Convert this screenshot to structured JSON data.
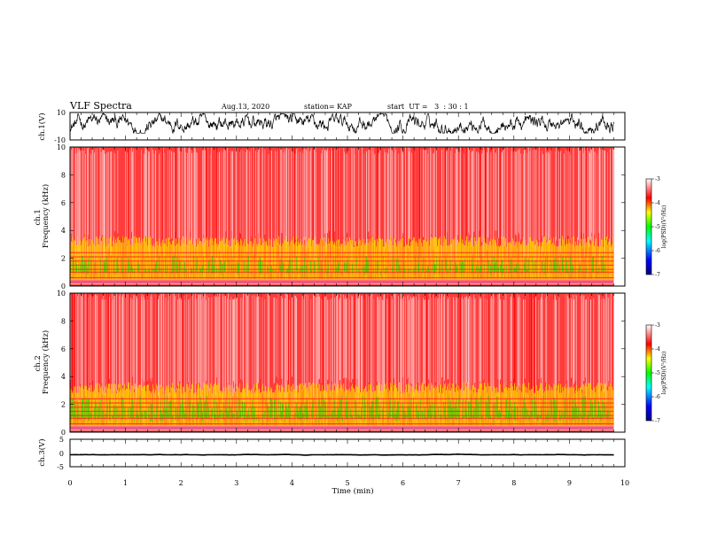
{
  "header": {
    "title": "VLF Spectra",
    "date": "Aug.13, 2020",
    "station": "station= KAP",
    "start": "start  UT =   3  : 30 : 1"
  },
  "chart_data": [
    {
      "id": "ch1-wave",
      "type": "line",
      "ylabel": "ch.1(V)",
      "ylim": [
        -10,
        10
      ],
      "ytick_labels": [
        "10",
        "-10"
      ],
      "xlim": [
        0,
        10
      ],
      "amplitude_range": [
        -5,
        9
      ],
      "color": "#000000"
    },
    {
      "id": "ch1-spectrogram",
      "type": "heatmap",
      "ylabel": "ch.1\nFrequency (kHz)",
      "ylim": [
        0,
        10
      ],
      "ytick_labels": [
        "0",
        "2",
        "4",
        "6",
        "8",
        "10"
      ],
      "xlim": [
        0,
        10
      ],
      "data_end_min": 9.8,
      "colorbar": {
        "label": "log(PSD)(V²/Hz)",
        "range": [
          -7,
          -3
        ],
        "tick_labels": [
          "-3",
          "-4",
          "-5",
          "-6",
          "-7"
        ]
      },
      "low_band_khz": [
        0.5,
        3.0
      ]
    },
    {
      "id": "ch2-spectrogram",
      "type": "heatmap",
      "ylabel": "ch.2\nFrequency (kHz)",
      "ylim": [
        0,
        10
      ],
      "ytick_labels": [
        "0",
        "2",
        "4",
        "6",
        "8",
        "10"
      ],
      "xlim": [
        0,
        10
      ],
      "data_end_min": 9.8,
      "colorbar": {
        "label": "log(PSD)(V²/Hz)",
        "range": [
          -7,
          -3
        ],
        "tick_labels": [
          "-3",
          "-4",
          "-5",
          "-6",
          "-7"
        ]
      },
      "low_band_khz": [
        0.5,
        3.0
      ]
    },
    {
      "id": "ch3-wave",
      "type": "line",
      "ylabel": "ch.3(V)",
      "ylim": [
        -5,
        5
      ],
      "ytick_labels": [
        "5",
        "0",
        "-5"
      ],
      "xlim": [
        0,
        10
      ],
      "amplitude_range": [
        -1.0,
        -0.3
      ],
      "color": "#000000"
    }
  ],
  "xaxis": {
    "label": "Time (min)",
    "tick_labels": [
      "0",
      "1",
      "2",
      "3",
      "4",
      "5",
      "6",
      "7",
      "8",
      "9",
      "10"
    ]
  },
  "colors": {
    "jet": [
      "#00008f",
      "#0000ff",
      "#00ffff",
      "#00ff00",
      "#ffff00",
      "#ff0000"
    ],
    "noise": "#ff2a2a"
  }
}
